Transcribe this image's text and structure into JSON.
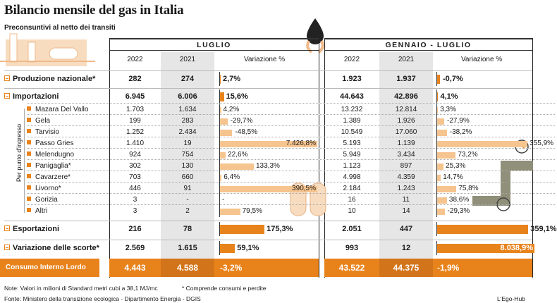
{
  "title": "Bilancio mensile del gas in Italia",
  "subtitle": "Preconsuntivi al netto dei transiti",
  "side_label": "Per punto d'ingresso",
  "panels": {
    "luglio": {
      "label": "LUGLIO",
      "col1": "2022",
      "col2": "2021",
      "col3": "Variazione %"
    },
    "gen_lug": {
      "label": "GENNAIO - LUGLIO",
      "col1": "2022",
      "col2": "2021",
      "col3": "Variazione %"
    }
  },
  "rows": [
    {
      "label": "Produzione nazionale*",
      "major": true,
      "l22": "282",
      "l21": "274",
      "lvar": "2,7%",
      "lpct": 2.7,
      "g22": "1.923",
      "g21": "1.937",
      "gvar": "-0,7%",
      "gpct": -0.7
    },
    {
      "label": "Importazioni",
      "major": true,
      "l22": "6.945",
      "l21": "6.006",
      "lvar": "15,6%",
      "lpct": 15.6,
      "g22": "44.643",
      "g21": "42.896",
      "gvar": "4,1%",
      "gpct": 4.1
    },
    {
      "label": "Mazara Del Vallo",
      "major": false,
      "l22": "1.703",
      "l21": "1.634",
      "lvar": "4,2%",
      "lpct": 4.2,
      "g22": "13.232",
      "g21": "12.814",
      "gvar": "3,3%",
      "gpct": 3.3
    },
    {
      "label": "Gela",
      "major": false,
      "l22": "199",
      "l21": "283",
      "lvar": "-29,7%",
      "lpct": -29.7,
      "g22": "1.389",
      "g21": "1.926",
      "gvar": "-27,9%",
      "gpct": -27.9
    },
    {
      "label": "Tarvisio",
      "major": false,
      "l22": "1.252",
      "l21": "2.434",
      "lvar": "-48,5%",
      "lpct": -48.5,
      "g22": "10.549",
      "g21": "17.060",
      "gvar": "-38,2%",
      "gpct": -38.2
    },
    {
      "label": "Passo Gries",
      "major": false,
      "l22": "1.410",
      "l21": "19",
      "lvar": "7.426,8%",
      "lpct": 7426.8,
      "g22": "5.193",
      "g21": "1.139",
      "gvar": "355,9%",
      "gpct": 355.9
    },
    {
      "label": "Melendugno",
      "major": false,
      "l22": "924",
      "l21": "754",
      "lvar": "22,6%",
      "lpct": 22.6,
      "g22": "5.949",
      "g21": "3.434",
      "gvar": "73,2%",
      "gpct": 73.2
    },
    {
      "label": "Panigaglia*",
      "major": false,
      "l22": "302",
      "l21": "130",
      "lvar": "133,3%",
      "lpct": 133.3,
      "g22": "1.123",
      "g21": "897",
      "gvar": "25,3%",
      "gpct": 25.3
    },
    {
      "label": "Cavarzere*",
      "major": false,
      "l22": "703",
      "l21": "660",
      "lvar": "6,4%",
      "lpct": 6.4,
      "g22": "4.998",
      "g21": "4.359",
      "gvar": "14,7%",
      "gpct": 14.7
    },
    {
      "label": "Livorno*",
      "major": false,
      "l22": "446",
      "l21": "91",
      "lvar": "390,5%",
      "lpct": 390.5,
      "g22": "2.184",
      "g21": "1.243",
      "gvar": "75,8%",
      "gpct": 75.8
    },
    {
      "label": "Gorizia",
      "major": false,
      "l22": "3",
      "l21": "-",
      "lvar": "-",
      "lpct": 0,
      "g22": "16",
      "g21": "11",
      "gvar": "38,6%",
      "gpct": 38.6
    },
    {
      "label": "Altri",
      "major": false,
      "l22": "3",
      "l21": "2",
      "lvar": "79,5%",
      "lpct": 79.5,
      "g22": "10",
      "g21": "14",
      "gvar": "-29,3%",
      "gpct": -29.3
    },
    {
      "label": "Esportazioni",
      "major": true,
      "l22": "216",
      "l21": "78",
      "lvar": "175,3%",
      "lpct": 175.3,
      "g22": "2.051",
      "g21": "447",
      "gvar": "359,1%",
      "gpct": 359.1
    },
    {
      "label": "Variazione delle scorte*",
      "major": true,
      "l22": "2.569",
      "l21": "1.615",
      "lvar": "59,1%",
      "lpct": 59.1,
      "g22": "993",
      "g21": "12",
      "gvar": "8.038,9%",
      "gpct": 8038.9
    }
  ],
  "consumo": {
    "label": "Consumo Interno Lordo",
    "l22": "4.443",
    "l21": "4.588",
    "lvar": "-3,2%",
    "g22": "43.522",
    "g21": "44.375",
    "gvar": "-1,9%"
  },
  "note": "Note: Valori in milioni di Standard metri cubi a 38,1 MJ/mc",
  "note2": "* Comprende consumi e perdite",
  "source": "Fonte: Ministero della transizione ecologica - Dipartimento Energia - DGIS",
  "credit": "L'Ego-Hub",
  "colors": {
    "accent": "#e8831c",
    "accent_light": "#f6c48f",
    "shade": "#e6e6e6"
  }
}
